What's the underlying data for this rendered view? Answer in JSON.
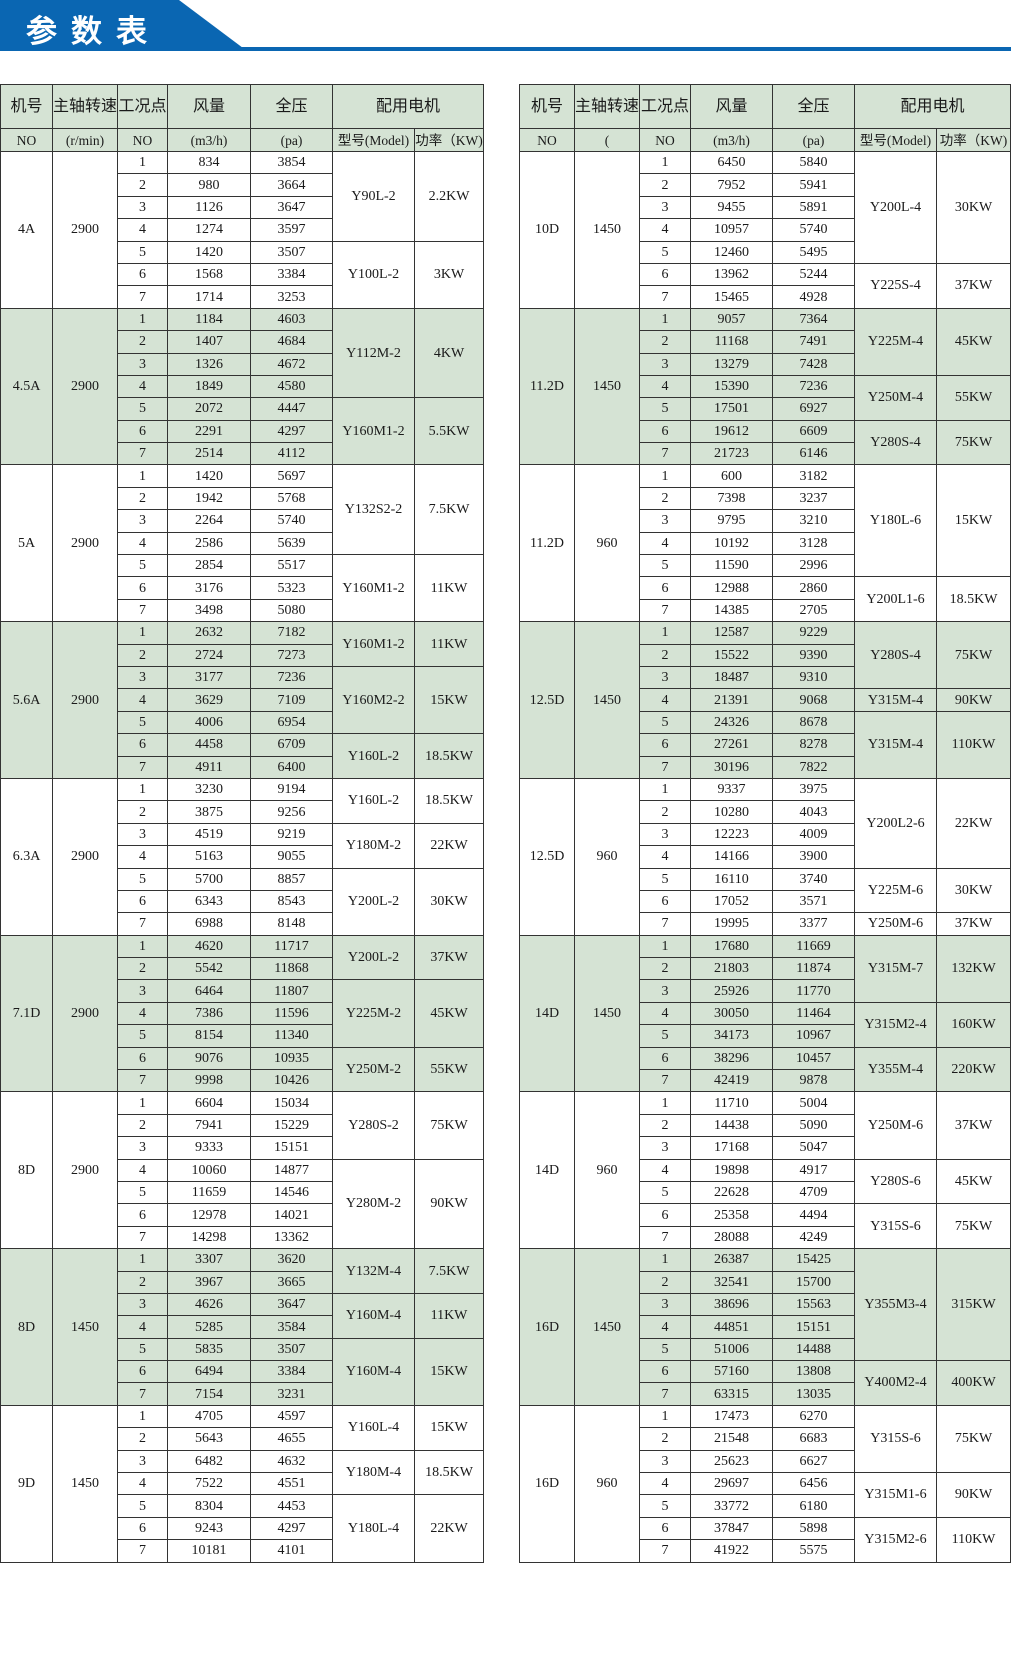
{
  "header": {
    "title": "参数表",
    "accent_color": "#0a66b2",
    "shade_color": "#d5e3d4"
  },
  "columns": {
    "row1": [
      "机号",
      "主轴转速",
      "工况点",
      "风量",
      "全压",
      "配用电机"
    ],
    "left_row2": [
      "NO",
      "(r/min)",
      "NO",
      "(m3/h)",
      "(pa)",
      "型号(Model)",
      "功率（KW)"
    ],
    "right_row2": [
      "NO",
      "(",
      "NO",
      "(m3/h)",
      "(pa)",
      "型号(Model)",
      "功率（KW)"
    ]
  },
  "left_table": [
    {
      "model": "4A",
      "speed": "2900",
      "shaded": false,
      "rows": [
        [
          "1",
          "834",
          "3854"
        ],
        [
          "2",
          "980",
          "3664"
        ],
        [
          "3",
          "1126",
          "3647"
        ],
        [
          "4",
          "1274",
          "3597"
        ],
        [
          "5",
          "1420",
          "3507"
        ],
        [
          "6",
          "1568",
          "3384"
        ],
        [
          "7",
          "1714",
          "3253"
        ]
      ],
      "motors": [
        {
          "model": "Y90L-2",
          "power": "2.2KW",
          "span": 4
        },
        {
          "model": "Y100L-2",
          "power": "3KW",
          "span": 3
        }
      ]
    },
    {
      "model": "4.5A",
      "speed": "2900",
      "shaded": true,
      "rows": [
        [
          "1",
          "1184",
          "4603"
        ],
        [
          "2",
          "1407",
          "4684"
        ],
        [
          "3",
          "1326",
          "4672"
        ],
        [
          "4",
          "1849",
          "4580"
        ],
        [
          "5",
          "2072",
          "4447"
        ],
        [
          "6",
          "2291",
          "4297"
        ],
        [
          "7",
          "2514",
          "4112"
        ]
      ],
      "motors": [
        {
          "model": "Y112M-2",
          "power": "4KW",
          "span": 4
        },
        {
          "model": "Y160M1-2",
          "power": "5.5KW",
          "span": 3
        }
      ]
    },
    {
      "model": "5A",
      "speed": "2900",
      "shaded": false,
      "rows": [
        [
          "1",
          "1420",
          "5697"
        ],
        [
          "2",
          "1942",
          "5768"
        ],
        [
          "3",
          "2264",
          "5740"
        ],
        [
          "4",
          "2586",
          "5639"
        ],
        [
          "5",
          "2854",
          "5517"
        ],
        [
          "6",
          "3176",
          "5323"
        ],
        [
          "7",
          "3498",
          "5080"
        ]
      ],
      "motors": [
        {
          "model": "Y132S2-2",
          "power": "7.5KW",
          "span": 4
        },
        {
          "model": "Y160M1-2",
          "power": "11KW",
          "span": 3
        }
      ]
    },
    {
      "model": "5.6A",
      "speed": "2900",
      "shaded": true,
      "rows": [
        [
          "1",
          "2632",
          "7182"
        ],
        [
          "2",
          "2724",
          "7273"
        ],
        [
          "3",
          "3177",
          "7236"
        ],
        [
          "4",
          "3629",
          "7109"
        ],
        [
          "5",
          "4006",
          "6954"
        ],
        [
          "6",
          "4458",
          "6709"
        ],
        [
          "7",
          "4911",
          "6400"
        ]
      ],
      "motors": [
        {
          "model": "Y160M1-2",
          "power": "11KW",
          "span": 2
        },
        {
          "model": "Y160M2-2",
          "power": "15KW",
          "span": 3
        },
        {
          "model": "Y160L-2",
          "power": "18.5KW",
          "span": 2
        }
      ]
    },
    {
      "model": "6.3A",
      "speed": "2900",
      "shaded": false,
      "rows": [
        [
          "1",
          "3230",
          "9194"
        ],
        [
          "2",
          "3875",
          "9256"
        ],
        [
          "3",
          "4519",
          "9219"
        ],
        [
          "4",
          "5163",
          "9055"
        ],
        [
          "5",
          "5700",
          "8857"
        ],
        [
          "6",
          "6343",
          "8543"
        ],
        [
          "7",
          "6988",
          "8148"
        ]
      ],
      "motors": [
        {
          "model": "Y160L-2",
          "power": "18.5KW",
          "span": 2
        },
        {
          "model": "Y180M-2",
          "power": "22KW",
          "span": 2
        },
        {
          "model": "Y200L-2",
          "power": "30KW",
          "span": 3
        }
      ]
    },
    {
      "model": "7.1D",
      "speed": "2900",
      "shaded": true,
      "rows": [
        [
          "1",
          "4620",
          "11717"
        ],
        [
          "2",
          "5542",
          "11868"
        ],
        [
          "3",
          "6464",
          "11807"
        ],
        [
          "4",
          "7386",
          "11596"
        ],
        [
          "5",
          "8154",
          "11340"
        ],
        [
          "6",
          "9076",
          "10935"
        ],
        [
          "7",
          "9998",
          "10426"
        ]
      ],
      "motors": [
        {
          "model": "Y200L-2",
          "power": "37KW",
          "span": 2
        },
        {
          "model": "Y225M-2",
          "power": "45KW",
          "span": 3
        },
        {
          "model": "Y250M-2",
          "power": "55KW",
          "span": 2
        }
      ]
    },
    {
      "model": "8D",
      "speed": "2900",
      "shaded": false,
      "rows": [
        [
          "1",
          "6604",
          "15034"
        ],
        [
          "2",
          "7941",
          "15229"
        ],
        [
          "3",
          "9333",
          "15151"
        ],
        [
          "4",
          "10060",
          "14877"
        ],
        [
          "5",
          "11659",
          "14546"
        ],
        [
          "6",
          "12978",
          "14021"
        ],
        [
          "7",
          "14298",
          "13362"
        ]
      ],
      "motors": [
        {
          "model": "Y280S-2",
          "power": "75KW",
          "span": 3
        },
        {
          "model": "Y280M-2",
          "power": "90KW",
          "span": 4
        }
      ]
    },
    {
      "model": "8D",
      "speed": "1450",
      "shaded": true,
      "rows": [
        [
          "1",
          "3307",
          "3620"
        ],
        [
          "2",
          "3967",
          "3665"
        ],
        [
          "3",
          "4626",
          "3647"
        ],
        [
          "4",
          "5285",
          "3584"
        ],
        [
          "5",
          "5835",
          "3507"
        ],
        [
          "6",
          "6494",
          "3384"
        ],
        [
          "7",
          "7154",
          "3231"
        ]
      ],
      "motors": [
        {
          "model": "Y132M-4",
          "power": "7.5KW",
          "span": 2
        },
        {
          "model": "Y160M-4",
          "power": "11KW",
          "span": 2
        },
        {
          "model": "Y160M-4",
          "power": "15KW",
          "span": 3
        }
      ]
    },
    {
      "model": "9D",
      "speed": "1450",
      "shaded": false,
      "rows": [
        [
          "1",
          "4705",
          "4597"
        ],
        [
          "2",
          "5643",
          "4655"
        ],
        [
          "3",
          "6482",
          "4632"
        ],
        [
          "4",
          "7522",
          "4551"
        ],
        [
          "5",
          "8304",
          "4453"
        ],
        [
          "6",
          "9243",
          "4297"
        ],
        [
          "7",
          "10181",
          "4101"
        ]
      ],
      "motors": [
        {
          "model": "Y160L-4",
          "power": "15KW",
          "span": 2
        },
        {
          "model": "Y180M-4",
          "power": "18.5KW",
          "span": 2
        },
        {
          "model": "Y180L-4",
          "power": "22KW",
          "span": 3
        }
      ]
    }
  ],
  "right_table": [
    {
      "model": "10D",
      "speed": "1450",
      "shaded": false,
      "rows": [
        [
          "1",
          "6450",
          "5840"
        ],
        [
          "2",
          "7952",
          "5941"
        ],
        [
          "3",
          "9455",
          "5891"
        ],
        [
          "4",
          "10957",
          "5740"
        ],
        [
          "5",
          "12460",
          "5495"
        ],
        [
          "6",
          "13962",
          "5244"
        ],
        [
          "7",
          "15465",
          "4928"
        ]
      ],
      "motors": [
        {
          "model": "Y200L-4",
          "power": "30KW",
          "span": 5
        },
        {
          "model": "Y225S-4",
          "power": "37KW",
          "span": 2
        }
      ]
    },
    {
      "model": "11.2D",
      "speed": "1450",
      "shaded": true,
      "rows": [
        [
          "1",
          "9057",
          "7364"
        ],
        [
          "2",
          "11168",
          "7491"
        ],
        [
          "3",
          "13279",
          "7428"
        ],
        [
          "4",
          "15390",
          "7236"
        ],
        [
          "5",
          "17501",
          "6927"
        ],
        [
          "6",
          "19612",
          "6609"
        ],
        [
          "7",
          "21723",
          "6146"
        ]
      ],
      "motors": [
        {
          "model": "Y225M-4",
          "power": "45KW",
          "span": 3
        },
        {
          "model": "Y250M-4",
          "power": "55KW",
          "span": 2
        },
        {
          "model": "Y280S-4",
          "power": "75KW",
          "span": 2
        }
      ]
    },
    {
      "model": "11.2D",
      "speed": "960",
      "shaded": false,
      "rows": [
        [
          "1",
          "600",
          "3182"
        ],
        [
          "2",
          "7398",
          "3237"
        ],
        [
          "3",
          "9795",
          "3210"
        ],
        [
          "4",
          "10192",
          "3128"
        ],
        [
          "5",
          "11590",
          "2996"
        ],
        [
          "6",
          "12988",
          "2860"
        ],
        [
          "7",
          "14385",
          "2705"
        ]
      ],
      "motors": [
        {
          "model": "Y180L-6",
          "power": "15KW",
          "span": 5
        },
        {
          "model": "Y200L1-6",
          "power": "18.5KW",
          "span": 2
        }
      ]
    },
    {
      "model": "12.5D",
      "speed": "1450",
      "shaded": true,
      "rows": [
        [
          "1",
          "12587",
          "9229"
        ],
        [
          "2",
          "15522",
          "9390"
        ],
        [
          "3",
          "18487",
          "9310"
        ],
        [
          "4",
          "21391",
          "9068"
        ],
        [
          "5",
          "24326",
          "8678"
        ],
        [
          "6",
          "27261",
          "8278"
        ],
        [
          "7",
          "30196",
          "7822"
        ]
      ],
      "motors": [
        {
          "model": "Y280S-4",
          "power": "75KW",
          "span": 3
        },
        {
          "model": "Y315M-4",
          "power": "90KW",
          "span": 1
        },
        {
          "model": "Y315M-4",
          "power": "110KW",
          "span": 3
        }
      ]
    },
    {
      "model": "12.5D",
      "speed": "960",
      "shaded": false,
      "rows": [
        [
          "1",
          "9337",
          "3975"
        ],
        [
          "2",
          "10280",
          "4043"
        ],
        [
          "3",
          "12223",
          "4009"
        ],
        [
          "4",
          "14166",
          "3900"
        ],
        [
          "5",
          "16110",
          "3740"
        ],
        [
          "6",
          "17052",
          "3571"
        ],
        [
          "7",
          "19995",
          "3377"
        ]
      ],
      "motors": [
        {
          "model": "Y200L2-6",
          "power": "22KW",
          "span": 4
        },
        {
          "model": "Y225M-6",
          "power": "30KW",
          "span": 2
        },
        {
          "model": "Y250M-6",
          "power": "37KW",
          "span": 1
        }
      ]
    },
    {
      "model": "14D",
      "speed": "1450",
      "shaded": true,
      "rows": [
        [
          "1",
          "17680",
          "11669"
        ],
        [
          "2",
          "21803",
          "11874"
        ],
        [
          "3",
          "25926",
          "11770"
        ],
        [
          "4",
          "30050",
          "11464"
        ],
        [
          "5",
          "34173",
          "10967"
        ],
        [
          "6",
          "38296",
          "10457"
        ],
        [
          "7",
          "42419",
          "9878"
        ]
      ],
      "motors": [
        {
          "model": "Y315M-7",
          "power": "132KW",
          "span": 3
        },
        {
          "model": "Y315M2-4",
          "power": "160KW",
          "span": 2
        },
        {
          "model": "Y355M-4",
          "power": "220KW",
          "span": 2
        }
      ]
    },
    {
      "model": "14D",
      "speed": "960",
      "shaded": false,
      "rows": [
        [
          "1",
          "11710",
          "5004"
        ],
        [
          "2",
          "14438",
          "5090"
        ],
        [
          "3",
          "17168",
          "5047"
        ],
        [
          "4",
          "19898",
          "4917"
        ],
        [
          "5",
          "22628",
          "4709"
        ],
        [
          "6",
          "25358",
          "4494"
        ],
        [
          "7",
          "28088",
          "4249"
        ]
      ],
      "motors": [
        {
          "model": "Y250M-6",
          "power": "37KW",
          "span": 3
        },
        {
          "model": "Y280S-6",
          "power": "45KW",
          "span": 2
        },
        {
          "model": "Y315S-6",
          "power": "75KW",
          "span": 2
        }
      ]
    },
    {
      "model": "16D",
      "speed": "1450",
      "shaded": true,
      "rows": [
        [
          "1",
          "26387",
          "15425"
        ],
        [
          "2",
          "32541",
          "15700"
        ],
        [
          "3",
          "38696",
          "15563"
        ],
        [
          "4",
          "44851",
          "15151"
        ],
        [
          "5",
          "51006",
          "14488"
        ],
        [
          "6",
          "57160",
          "13808"
        ],
        [
          "7",
          "63315",
          "13035"
        ]
      ],
      "motors": [
        {
          "model": "Y355M3-4",
          "power": "315KW",
          "span": 5
        },
        {
          "model": "Y400M2-4",
          "power": "400KW",
          "span": 2
        }
      ]
    },
    {
      "model": "16D",
      "speed": "960",
      "shaded": false,
      "rows": [
        [
          "1",
          "17473",
          "6270"
        ],
        [
          "2",
          "21548",
          "6683"
        ],
        [
          "3",
          "25623",
          "6627"
        ],
        [
          "4",
          "29697",
          "6456"
        ],
        [
          "5",
          "33772",
          "6180"
        ],
        [
          "6",
          "37847",
          "5898"
        ],
        [
          "7",
          "41922",
          "5575"
        ]
      ],
      "motors": [
        {
          "model": "Y315S-6",
          "power": "75KW",
          "span": 3
        },
        {
          "model": "Y315M1-6",
          "power": "90KW",
          "span": 2
        },
        {
          "model": "Y315M2-6",
          "power": "110KW",
          "span": 2
        }
      ]
    }
  ]
}
